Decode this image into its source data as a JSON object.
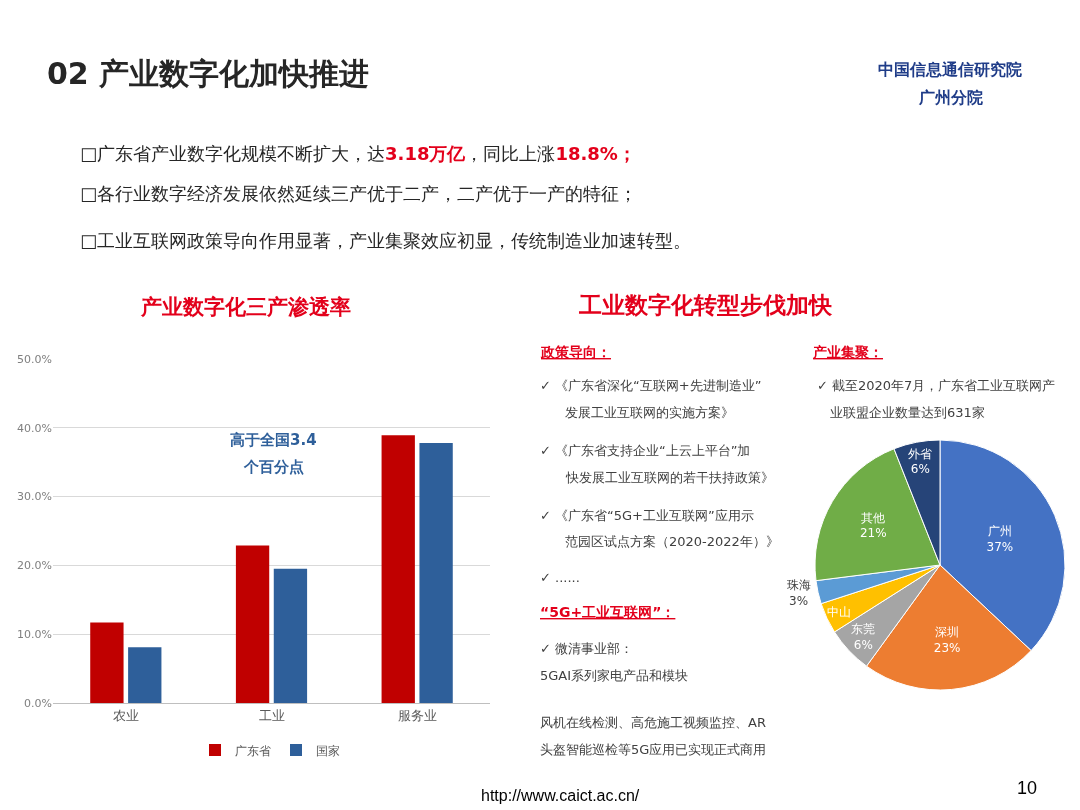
{
  "chart_data": [
    {
      "type": "other",
      "title": "02 产业数字化加快推进",
      "annotations": [
        "中国信息通信研究院广州分院",
        "□广东省产业数字化规模不断扩大，达3.18万亿，同比上涨18.8%；",
        "□各行业数字经济发展依然延续三产优于二产，二产优于一产的特征；",
        "□工业互联网政策导向作用显著，产业集聚效应初显，传统制造业加速转型。",
        "http://www.caict.ac.cn/",
        "10"
      ]
    },
    {
      "type": "bar",
      "title": "产业数字化三产渗透率",
      "categories": [
        "农业",
        "工业",
        "服务业"
      ],
      "series": [
        {
          "name": "广东省",
          "color": "#c00000",
          "values": [
            11.7,
            22.9,
            38.9
          ]
        },
        {
          "name": "国家",
          "color": "#2e5f9a",
          "values": [
            8.1,
            19.5,
            37.8
          ]
        }
      ],
      "ylim": [
        0,
        50
      ],
      "yticks": [
        {
          "value": 0,
          "label": "0.0%"
        },
        {
          "value": 10,
          "label": "10.0%"
        },
        {
          "value": 20,
          "label": "20.0%"
        },
        {
          "value": 30,
          "label": "30.0%"
        },
        {
          "value": 40,
          "label": "40.0%"
        },
        {
          "value": 50,
          "label": "50.0%"
        }
      ],
      "grid": "y",
      "legend": "bottom",
      "annotations": [
        "高于全国3.4个百分点"
      ]
    },
    {
      "type": "other",
      "title": "工业数字化转型步伐加快",
      "annotations": [
        "政策导向：",
        "✓ 《广东省深化“互联网+先进制造业”发展工业互联网的实施方案》",
        "✓ 《广东省支持企业“上云上平台”加快发展工业互联网的若干扶持政策》",
        "✓ 《广东省“5G+工业互联网”应用示范园区试点方案（2020-2022年）》",
        "✓ ......",
        "“5G+工业互联网”：",
        "✓ 微清事业部：",
        "5GAI系列家电产品和模块",
        "风机在线检测、高危施工视频监控、AR头盔智能巡检等5G应用已实现正式商用"
      ]
    },
    {
      "type": "pie",
      "title": "产业集聚：",
      "subtitle": "✓ 截至2020年7月，广东省工业互联网产业联盟企业数量达到631家",
      "categories": [
        "广州",
        "深圳",
        "东莞",
        "中山",
        "珠海",
        "其他",
        "外省"
      ],
      "values": [
        37,
        23,
        6,
        4,
        3,
        21,
        6
      ],
      "colors": [
        "#4472c4",
        "#ed7d31",
        "#a5a5a5",
        "#ffc000",
        "#5b9bd5",
        "#70ad47",
        "#264478"
      ],
      "value_labels": [
        "37%",
        "23%",
        "6%",
        null,
        "3%",
        "21%",
        "6%"
      ]
    }
  ]
}
